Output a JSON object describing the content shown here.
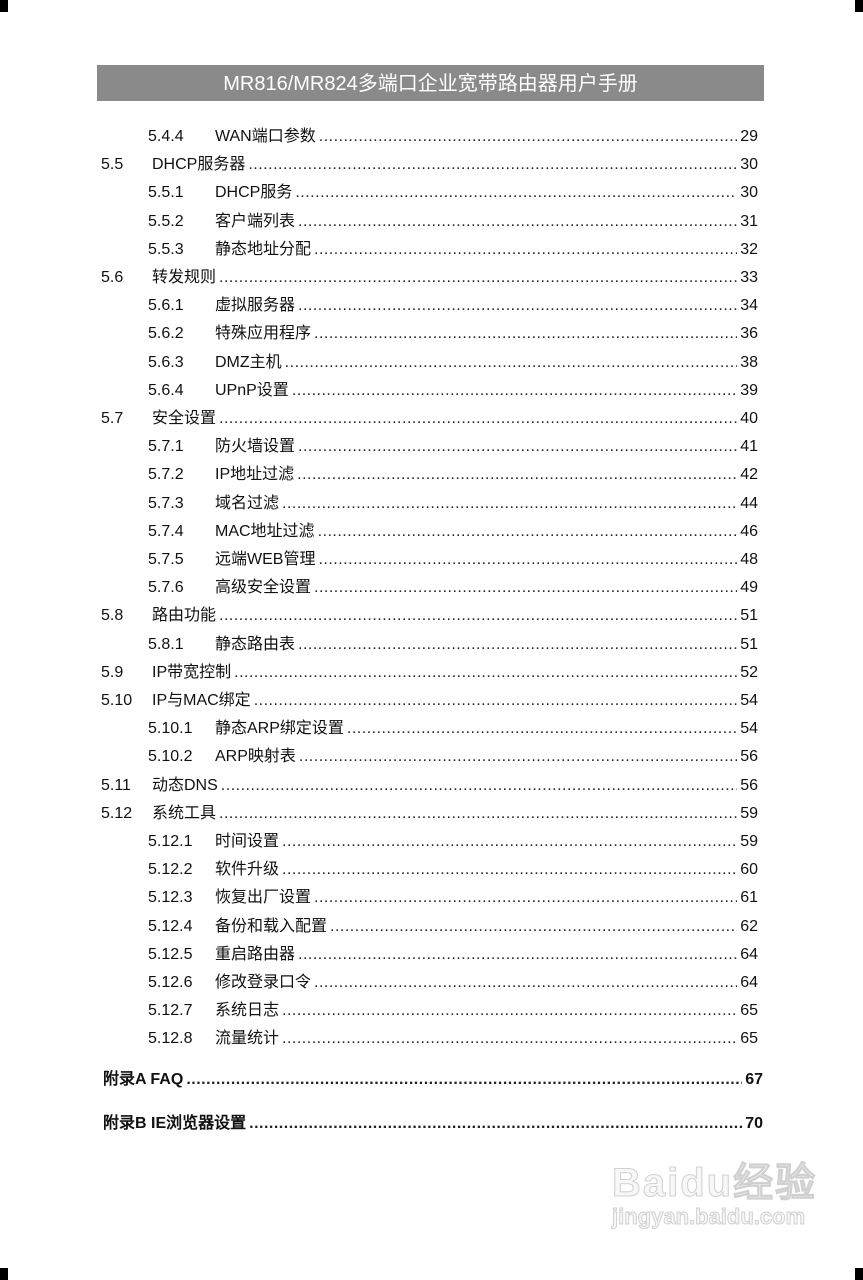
{
  "header": {
    "title": "MR816/MR824多端口企业宽带路由器用户手册"
  },
  "toc": [
    {
      "level": 2,
      "num": "5.4.4",
      "title": "WAN端口参数",
      "page": "29"
    },
    {
      "level": 1,
      "num": "5.5",
      "title": "DHCP服务器",
      "page": "30"
    },
    {
      "level": 2,
      "num": "5.5.1",
      "title": "DHCP服务",
      "page": "30"
    },
    {
      "level": 2,
      "num": "5.5.2",
      "title": "客户端列表",
      "page": "31"
    },
    {
      "level": 2,
      "num": "5.5.3",
      "title": "静态地址分配",
      "page": "32"
    },
    {
      "level": 1,
      "num": "5.6",
      "title": "转发规则",
      "page": "33"
    },
    {
      "level": 2,
      "num": "5.6.1",
      "title": "虚拟服务器",
      "page": "34"
    },
    {
      "level": 2,
      "num": "5.6.2",
      "title": "特殊应用程序",
      "page": "36"
    },
    {
      "level": 2,
      "num": "5.6.3",
      "title": "DMZ主机",
      "page": "38"
    },
    {
      "level": 2,
      "num": "5.6.4",
      "title": "UPnP设置",
      "page": "39"
    },
    {
      "level": 1,
      "num": "5.7",
      "title": "安全设置",
      "page": "40"
    },
    {
      "level": 2,
      "num": "5.7.1",
      "title": "防火墙设置",
      "page": "41"
    },
    {
      "level": 2,
      "num": "5.7.2",
      "title": "IP地址过滤",
      "page": "42"
    },
    {
      "level": 2,
      "num": "5.7.3",
      "title": "域名过滤",
      "page": "44"
    },
    {
      "level": 2,
      "num": "5.7.4",
      "title": "MAC地址过滤",
      "page": "46"
    },
    {
      "level": 2,
      "num": "5.7.5",
      "title": "远端WEB管理",
      "page": "48"
    },
    {
      "level": 2,
      "num": "5.7.6",
      "title": "高级安全设置",
      "page": "49"
    },
    {
      "level": 1,
      "num": "5.8",
      "title": "路由功能",
      "page": "51"
    },
    {
      "level": 2,
      "num": "5.8.1",
      "title": "静态路由表",
      "page": "51"
    },
    {
      "level": 1,
      "num": "5.9",
      "title": "IP带宽控制",
      "page": "52"
    },
    {
      "level": 1,
      "num": "5.10",
      "title": "IP与MAC绑定",
      "page": "54"
    },
    {
      "level": 2,
      "num": "5.10.1",
      "title": "静态ARP绑定设置",
      "page": "54"
    },
    {
      "level": 2,
      "num": "5.10.2",
      "title": "ARP映射表",
      "page": "56"
    },
    {
      "level": 1,
      "num": "5.11",
      "title": "动态DNS",
      "page": "56"
    },
    {
      "level": 1,
      "num": "5.12",
      "title": "系统工具",
      "page": "59"
    },
    {
      "level": 2,
      "num": "5.12.1",
      "title": "时间设置",
      "page": "59"
    },
    {
      "level": 2,
      "num": "5.12.2",
      "title": "软件升级",
      "page": "60"
    },
    {
      "level": 2,
      "num": "5.12.3",
      "title": "恢复出厂设置",
      "page": "61"
    },
    {
      "level": 2,
      "num": "5.12.4",
      "title": "备份和载入配置",
      "page": "62"
    },
    {
      "level": 2,
      "num": "5.12.5",
      "title": "重启路由器",
      "page": "64"
    },
    {
      "level": 2,
      "num": "5.12.6",
      "title": "修改登录口令",
      "page": "64"
    },
    {
      "level": 2,
      "num": "5.12.7",
      "title": "系统日志",
      "page": "65"
    },
    {
      "level": 2,
      "num": "5.12.8",
      "title": "流量统计",
      "page": "65"
    }
  ],
  "appendix": [
    {
      "title": "附录A FAQ",
      "page": "67"
    },
    {
      "title": "附录B IE浏览器设置",
      "page": "70"
    }
  ],
  "watermark": {
    "brand": "Baidu经验",
    "url": "jingyan.baidu.com"
  }
}
